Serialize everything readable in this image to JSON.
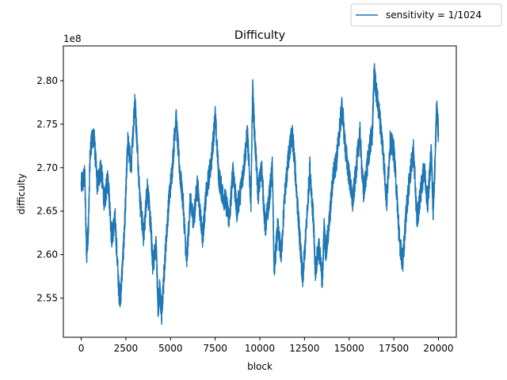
{
  "chart_data": {
    "type": "line",
    "title": "Difficulty",
    "xlabel": "block",
    "ylabel": "difficulty",
    "offset_label": "1e8",
    "xlim": [
      -1000,
      21000
    ],
    "ylim": [
      2.505,
      2.84
    ],
    "scale": 100000000,
    "xticks": [
      0,
      2500,
      5000,
      7500,
      10000,
      12500,
      15000,
      17500,
      20000
    ],
    "xtick_labels": [
      "0",
      "2500",
      "5000",
      "7500",
      "10000",
      "12500",
      "15000",
      "17500",
      "20000"
    ],
    "yticks": [
      2.55,
      2.6,
      2.65,
      2.7,
      2.75,
      2.8
    ],
    "ytick_labels": [
      "2.55",
      "2.60",
      "2.65",
      "2.70",
      "2.75",
      "2.80"
    ],
    "grid": false,
    "legend_position": "top-right, outside axes",
    "series": [
      {
        "name": "sensitivity = 1/1024",
        "color": "#1f77b4",
        "x": [
          0,
          200,
          300,
          400,
          500,
          700,
          900,
          1100,
          1300,
          1500,
          1700,
          1900,
          2100,
          2200,
          2400,
          2500,
          2600,
          2800,
          3000,
          3100,
          3300,
          3500,
          3700,
          3900,
          4000,
          4200,
          4300,
          4400,
          4500,
          4700,
          4900,
          5100,
          5300,
          5500,
          5700,
          5900,
          6100,
          6300,
          6500,
          6800,
          7000,
          7300,
          7500,
          7700,
          7900,
          8100,
          8300,
          8500,
          8700,
          8900,
          9100,
          9300,
          9500,
          9600,
          9700,
          9900,
          10100,
          10300,
          10500,
          10700,
          10800,
          11000,
          11200,
          11400,
          11600,
          11800,
          11900,
          12100,
          12300,
          12400,
          12600,
          12800,
          13000,
          13100,
          13300,
          13500,
          13600,
          13700,
          13900,
          14100,
          14300,
          14500,
          14600,
          14800,
          15000,
          15200,
          15400,
          15600,
          15800,
          16000,
          16200,
          16300,
          16400,
          16500,
          16700,
          16900,
          17100,
          17300,
          17500,
          17700,
          17800,
          18000,
          18200,
          18400,
          18600,
          18800,
          19000,
          19200,
          19400,
          19500,
          19600,
          19700,
          19800,
          19900,
          20000
        ],
        "values": [
          2.68,
          2.69,
          2.6,
          2.63,
          2.72,
          2.74,
          2.68,
          2.7,
          2.66,
          2.69,
          2.62,
          2.64,
          2.56,
          2.55,
          2.62,
          2.67,
          2.73,
          2.7,
          2.78,
          2.74,
          2.66,
          2.62,
          2.68,
          2.63,
          2.59,
          2.61,
          2.54,
          2.56,
          2.53,
          2.6,
          2.66,
          2.7,
          2.76,
          2.7,
          2.66,
          2.59,
          2.66,
          2.64,
          2.68,
          2.62,
          2.67,
          2.71,
          2.76,
          2.69,
          2.67,
          2.66,
          2.64,
          2.7,
          2.65,
          2.67,
          2.7,
          2.74,
          2.66,
          2.79,
          2.74,
          2.67,
          2.7,
          2.63,
          2.66,
          2.7,
          2.58,
          2.63,
          2.6,
          2.67,
          2.71,
          2.74,
          2.72,
          2.66,
          2.6,
          2.57,
          2.63,
          2.7,
          2.64,
          2.58,
          2.61,
          2.57,
          2.63,
          2.6,
          2.64,
          2.69,
          2.71,
          2.75,
          2.77,
          2.72,
          2.69,
          2.66,
          2.7,
          2.74,
          2.67,
          2.7,
          2.73,
          2.74,
          2.81,
          2.79,
          2.76,
          2.72,
          2.66,
          2.73,
          2.72,
          2.66,
          2.62,
          2.59,
          2.65,
          2.69,
          2.72,
          2.64,
          2.67,
          2.7,
          2.66,
          2.69,
          2.72,
          2.65,
          2.7,
          2.77,
          2.74
        ]
      }
    ]
  }
}
